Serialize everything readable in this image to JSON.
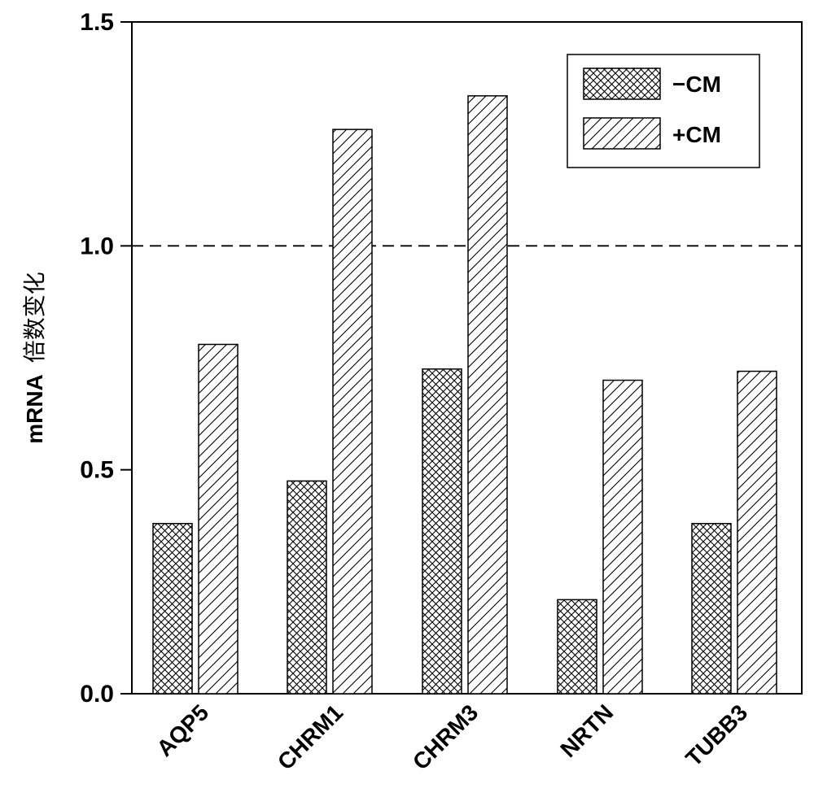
{
  "chart_data": {
    "type": "bar",
    "title": "",
    "xlabel": "",
    "ylabel": "mRNA  倍数变化",
    "ylabel_parts": [
      "mRNA",
      "倍数变化"
    ],
    "categories": [
      "AQP5",
      "CHRM1",
      "CHRM3",
      "NRTN",
      "TUBB3"
    ],
    "series": [
      {
        "name": "−CM",
        "pattern": "crosshatch",
        "values": [
          0.38,
          0.475,
          0.725,
          0.21,
          0.38
        ]
      },
      {
        "name": "+CM",
        "pattern": "diagonal",
        "values": [
          0.78,
          1.26,
          1.335,
          0.7,
          0.72
        ]
      }
    ],
    "ylim": [
      0,
      1.5
    ],
    "yticks": [
      0.0,
      0.5,
      1.0,
      1.5
    ],
    "ytick_labels": [
      "0.0",
      "0.5",
      "1.0",
      "1.5"
    ],
    "reference_line": {
      "y": 1.0,
      "style": "dashed"
    },
    "grid": false,
    "legend_position": "top-right"
  }
}
